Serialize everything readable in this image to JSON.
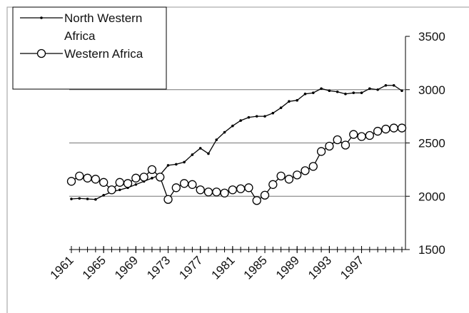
{
  "chart_data": {
    "type": "line",
    "x": [
      1961,
      1962,
      1963,
      1964,
      1965,
      1966,
      1967,
      1968,
      1969,
      1970,
      1971,
      1972,
      1973,
      1974,
      1975,
      1976,
      1977,
      1978,
      1979,
      1980,
      1981,
      1982,
      1983,
      1984,
      1985,
      1986,
      1987,
      1988,
      1989,
      1990,
      1991,
      1992,
      1993,
      1994,
      1995,
      1996,
      1997,
      1998,
      1999,
      2000,
      2001,
      2002
    ],
    "series": [
      {
        "name": "North Western Africa",
        "color": "#000000",
        "marker": "dot",
        "values": [
          1975,
          1980,
          1975,
          1970,
          2010,
          2040,
          2060,
          2080,
          2110,
          2140,
          2170,
          2200,
          2290,
          2300,
          2320,
          2390,
          2450,
          2400,
          2530,
          2600,
          2660,
          2710,
          2740,
          2750,
          2750,
          2780,
          2830,
          2890,
          2900,
          2960,
          2970,
          3010,
          2990,
          2980,
          2960,
          2970,
          2970,
          3010,
          3000,
          3040,
          3040,
          2990
        ]
      },
      {
        "name": "Western Africa",
        "color": "#000000",
        "marker": "circle",
        "values": [
          2140,
          2190,
          2170,
          2160,
          2130,
          2060,
          2130,
          2120,
          2170,
          2180,
          2250,
          2180,
          1970,
          2080,
          2120,
          2110,
          2060,
          2040,
          2040,
          2030,
          2060,
          2070,
          2080,
          1960,
          2010,
          2110,
          2190,
          2160,
          2200,
          2240,
          2280,
          2420,
          2470,
          2530,
          2480,
          2580,
          2560,
          2570,
          2610,
          2630,
          2640,
          2640
        ]
      }
    ],
    "xlim": [
      1961,
      2002
    ],
    "xticks": [
      1961,
      1965,
      1969,
      1973,
      1977,
      1981,
      1985,
      1989,
      1993,
      1997
    ],
    "ylim": [
      1500,
      3500
    ],
    "yticks": [
      1500,
      2000,
      2500,
      3000,
      3500
    ],
    "grid": true,
    "legend": "upper left"
  }
}
